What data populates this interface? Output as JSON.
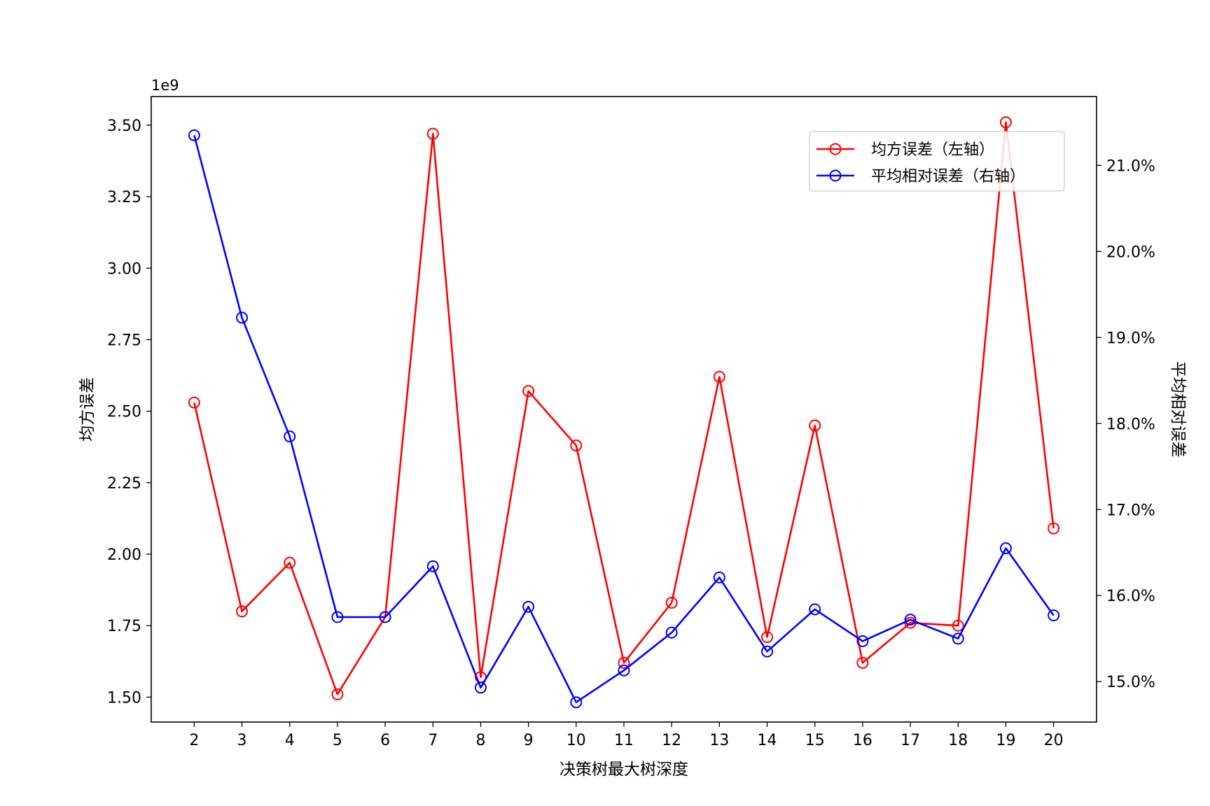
{
  "chart_data": {
    "type": "line",
    "xlabel": "决策树最大树深度",
    "ylabel_left": "均方误差",
    "ylabel_right": "平均相对误差",
    "left_axis_offset_text": "1e9",
    "x": [
      2,
      3,
      4,
      5,
      6,
      7,
      8,
      9,
      10,
      11,
      12,
      13,
      14,
      15,
      16,
      17,
      18,
      19,
      20
    ],
    "y_left_ticks": [
      "1.50",
      "1.75",
      "2.00",
      "2.25",
      "2.50",
      "2.75",
      "3.00",
      "3.25",
      "3.50"
    ],
    "y_left_tick_values": [
      1.5,
      1.75,
      2.0,
      2.25,
      2.5,
      2.75,
      3.0,
      3.25,
      3.5
    ],
    "y_right_ticks": [
      "15.0%",
      "16.0%",
      "17.0%",
      "18.0%",
      "19.0%",
      "20.0%",
      "21.0%"
    ],
    "y_right_tick_values": [
      15,
      16,
      17,
      18,
      19,
      20,
      21
    ],
    "ylim_left": [
      1.413,
      3.6
    ],
    "ylim_right": [
      14.53,
      21.8
    ],
    "legend_position": "upper right",
    "series": [
      {
        "name": "均方误差（左轴）",
        "axis": "left",
        "color": "#ff0000",
        "marker": "open-circle",
        "values": [
          2.53,
          1.8,
          1.97,
          1.51,
          1.78,
          3.47,
          1.57,
          2.57,
          2.38,
          1.62,
          1.83,
          2.62,
          1.71,
          2.45,
          1.62,
          1.76,
          1.75,
          3.51,
          2.09
        ]
      },
      {
        "name": "平均相对误差（右轴）",
        "axis": "right",
        "color": "#0000ff",
        "marker": "open-circle",
        "values": [
          21.35,
          19.23,
          17.85,
          15.75,
          15.75,
          16.34,
          14.93,
          15.87,
          14.76,
          15.13,
          15.57,
          16.21,
          15.35,
          15.84,
          15.47,
          15.72,
          15.5,
          16.55,
          15.77
        ]
      }
    ]
  }
}
